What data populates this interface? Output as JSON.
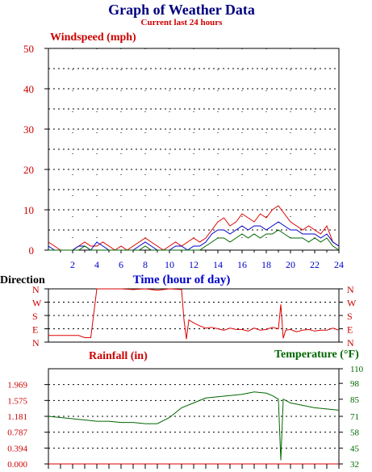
{
  "page": {
    "title": "Graph of Weather Data",
    "subtitle": "Current last 24 hours"
  },
  "colors": {
    "title": "#00007f",
    "subtitle": "#cc0000",
    "red": "#dd0000",
    "blue": "#0000cc",
    "green": "#006600",
    "axis": "#000000"
  },
  "chart_data": [
    {
      "type": "line",
      "title": "Windspeed (mph)",
      "xlabel": "Time (hour of day)",
      "ylabel": "",
      "xlim": [
        0,
        24
      ],
      "ylim": [
        0,
        50
      ],
      "x_ticks": [
        "2",
        "4",
        "6",
        "8",
        "10",
        "12",
        "14",
        "16",
        "18",
        "20",
        "22",
        "24"
      ],
      "y_ticks": [
        "0",
        "10",
        "20",
        "30",
        "40",
        "50"
      ],
      "grid": true,
      "x": [
        0,
        0.5,
        1,
        1.5,
        2,
        2.5,
        3,
        3.5,
        4,
        4.5,
        5,
        5.5,
        6,
        6.5,
        7,
        7.5,
        8,
        8.5,
        9,
        9.5,
        10,
        10.5,
        11,
        11.5,
        12,
        12.5,
        13,
        13.5,
        14,
        14.5,
        15,
        15.5,
        16,
        16.5,
        17,
        17.5,
        18,
        18.5,
        19,
        19.5,
        20,
        20.5,
        21,
        21.5,
        22,
        22.5,
        23,
        23.5,
        24
      ],
      "series": [
        {
          "color": "red",
          "values": [
            2,
            1,
            0,
            0,
            0,
            1,
            2,
            1,
            1,
            2,
            1,
            0,
            1,
            0,
            1,
            2,
            3,
            2,
            1,
            0,
            1,
            2,
            1,
            2,
            3,
            2,
            3,
            5,
            7,
            8,
            6,
            7,
            9,
            8,
            7,
            9,
            8,
            10,
            11,
            9,
            7,
            6,
            5,
            6,
            5,
            4,
            6,
            2,
            1
          ]
        },
        {
          "color": "blue",
          "values": [
            1,
            0,
            0,
            0,
            0,
            1,
            1,
            0,
            2,
            1,
            0,
            0,
            0,
            0,
            0,
            1,
            2,
            1,
            0,
            0,
            0,
            1,
            1,
            0,
            1,
            1,
            2,
            4,
            5,
            5,
            4,
            5,
            6,
            5,
            6,
            6,
            5,
            6,
            7,
            6,
            5,
            5,
            4,
            4,
            4,
            3,
            4,
            2,
            1
          ]
        },
        {
          "color": "green",
          "values": [
            0,
            0,
            0,
            0,
            0,
            0,
            1,
            0,
            0,
            0,
            0,
            0,
            0,
            0,
            0,
            0,
            1,
            0,
            0,
            0,
            0,
            0,
            0,
            0,
            0,
            0,
            1,
            2,
            3,
            3,
            2,
            3,
            4,
            3,
            4,
            3,
            4,
            4,
            5,
            4,
            3,
            3,
            3,
            2,
            3,
            2,
            3,
            1,
            0
          ]
        }
      ]
    },
    {
      "type": "line",
      "title": "Direction",
      "ylabel": "",
      "xlim": [
        0,
        24
      ],
      "y_ticks": [
        "N",
        "W",
        "S",
        "E",
        "N"
      ],
      "x": [
        0,
        1,
        2,
        2.5,
        3,
        3.5,
        4,
        5,
        6,
        7,
        8,
        9,
        10,
        11,
        11.2,
        11.4,
        11.6,
        12,
        12.5,
        13,
        13.5,
        14,
        14.5,
        15,
        15.5,
        16,
        16.5,
        17,
        17.5,
        18,
        18.5,
        19,
        19.2,
        19.4,
        19.6,
        20,
        20.5,
        21,
        21.5,
        22,
        22.5,
        23,
        23.5,
        24
      ],
      "series": [
        {
          "color": "red",
          "values": [
            45,
            45,
            45,
            45,
            30,
            30,
            360,
            360,
            360,
            355,
            360,
            350,
            360,
            355,
            150,
            20,
            150,
            130,
            110,
            95,
            100,
            90,
            80,
            95,
            85,
            85,
            75,
            95,
            80,
            85,
            100,
            90,
            255,
            25,
            80,
            85,
            70,
            80,
            85,
            75,
            80,
            80,
            95,
            80
          ]
        }
      ]
    },
    {
      "type": "line",
      "title": "Rainfall (in)",
      "xlim": [
        0,
        24
      ],
      "ylim": [
        0,
        2.362
      ],
      "y_ticks": [
        "0.000",
        "0.394",
        "0.787",
        "1.181",
        "1.575",
        "1.969"
      ],
      "series": [
        {
          "color": "red",
          "name": "Rainfall (in)",
          "values": [
            0,
            0,
            0,
            0,
            0,
            0,
            0,
            0,
            0,
            0,
            0,
            0,
            0,
            0,
            0,
            0,
            0,
            0,
            0,
            0,
            0,
            0,
            0,
            0,
            0
          ]
        }
      ]
    },
    {
      "type": "line",
      "title": "Temperature (°F)",
      "xlim": [
        0,
        24
      ],
      "ylim": [
        32,
        110
      ],
      "y_ticks": [
        "32",
        "45",
        "58",
        "71",
        "85",
        "98",
        "110"
      ],
      "x": [
        0,
        1,
        2,
        3,
        4,
        5,
        6,
        7,
        8,
        9,
        10,
        11,
        12,
        13,
        14,
        15,
        16,
        17,
        18,
        18.5,
        19,
        19.2,
        19.4,
        19.6,
        20,
        21,
        22,
        23,
        24
      ],
      "series": [
        {
          "color": "green",
          "name": "Temperature (°F)",
          "values": [
            71,
            70,
            69,
            68,
            67,
            67,
            66,
            66,
            65,
            65,
            70,
            78,
            82,
            86,
            87,
            88,
            89,
            91,
            90,
            88,
            85,
            35,
            85,
            84,
            82,
            80,
            78,
            77,
            76
          ]
        }
      ]
    }
  ]
}
